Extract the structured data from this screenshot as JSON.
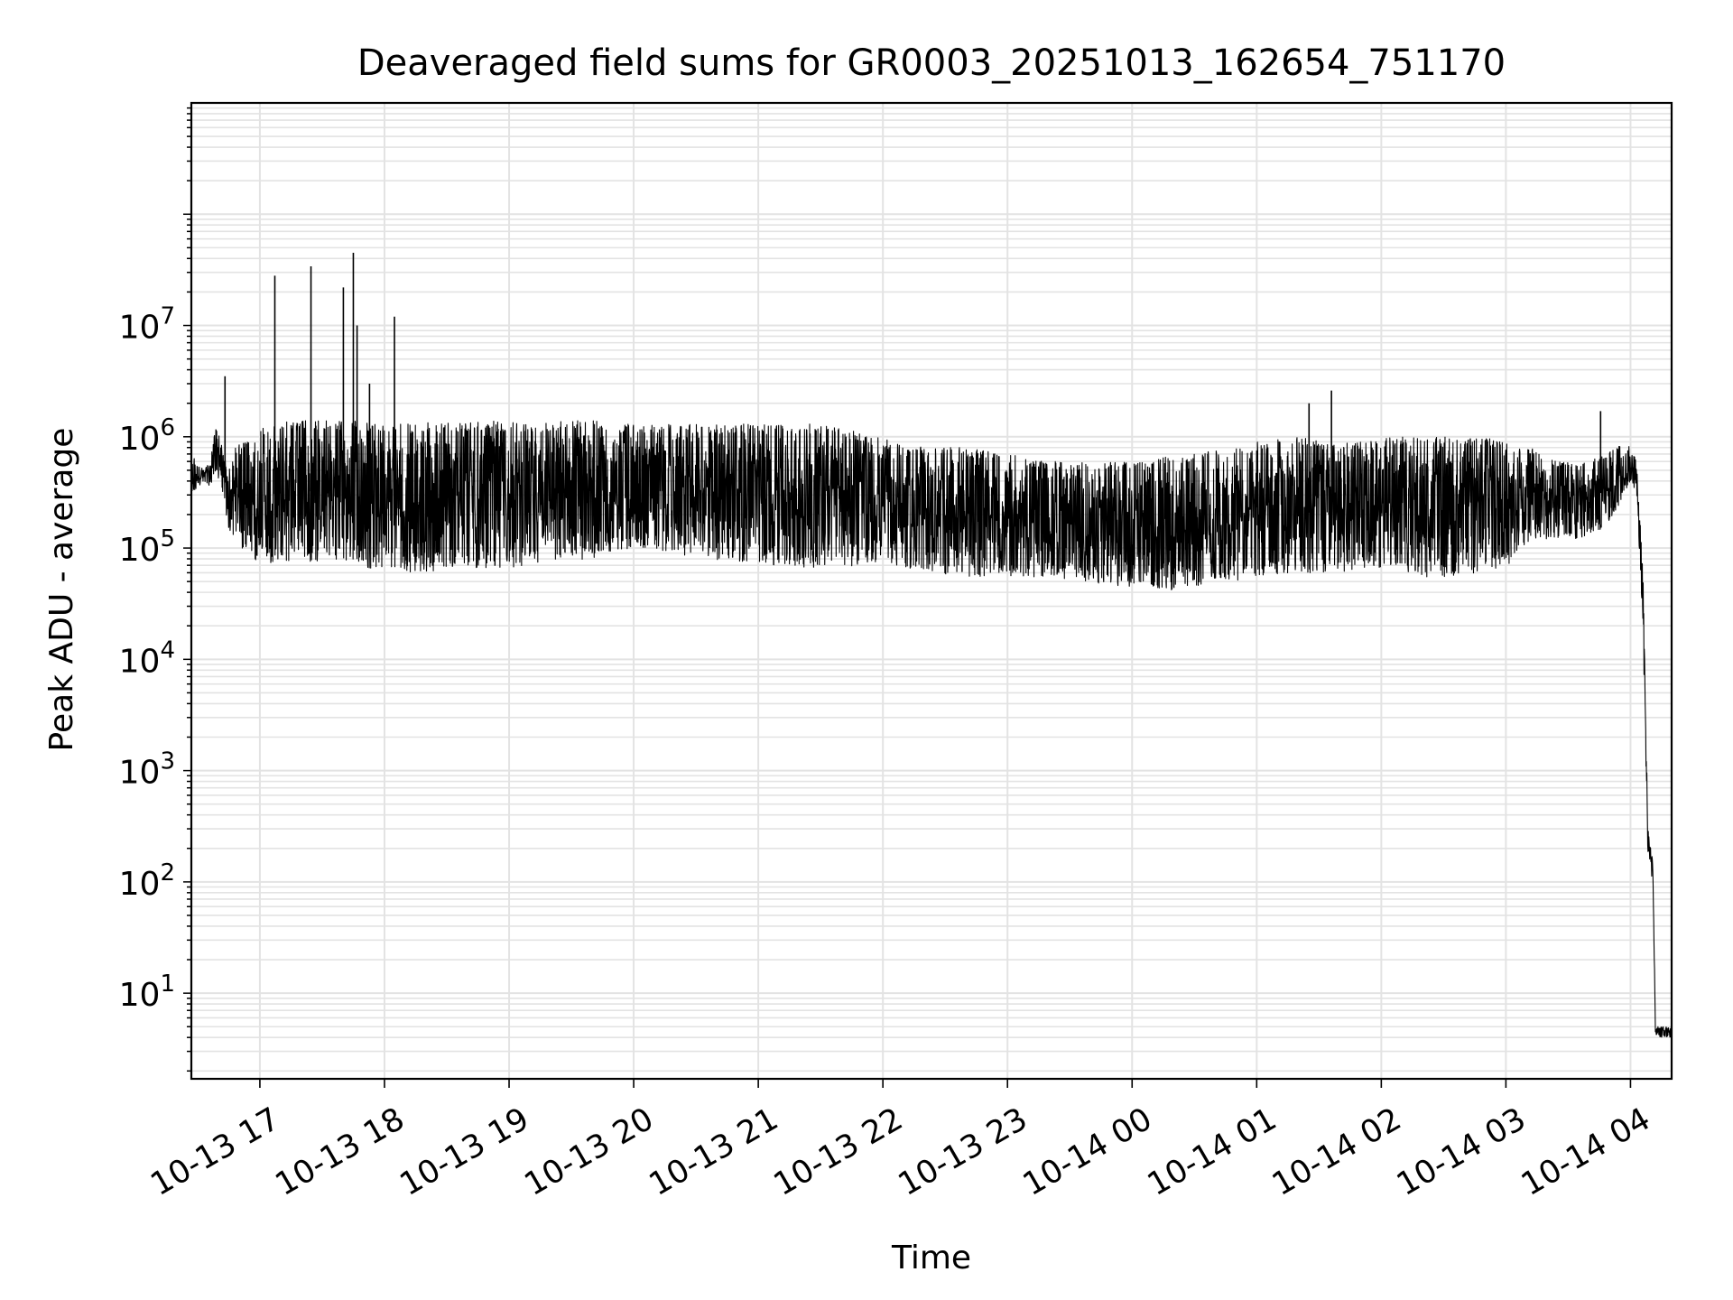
{
  "chart_data": {
    "type": "line",
    "title": "Deaveraged field sums for GR0003_20251013_162654_751170",
    "xlabel": "Time",
    "ylabel": "Peak ADU - average",
    "yscale": "log",
    "ylim": [
      1.7,
      1000000000
    ],
    "xlim_hours": [
      16.45,
      28.33
    ],
    "grid": true,
    "line_color": "#000000",
    "grid_color": "#e3e3e3",
    "xticks": [
      {
        "hour": 17,
        "label": "10-13 17"
      },
      {
        "hour": 18,
        "label": "10-13 18"
      },
      {
        "hour": 19,
        "label": "10-13 19"
      },
      {
        "hour": 20,
        "label": "10-13 20"
      },
      {
        "hour": 21,
        "label": "10-13 21"
      },
      {
        "hour": 22,
        "label": "10-13 22"
      },
      {
        "hour": 23,
        "label": "10-13 23"
      },
      {
        "hour": 24,
        "label": "10-14 00"
      },
      {
        "hour": 25,
        "label": "10-14 01"
      },
      {
        "hour": 26,
        "label": "10-14 02"
      },
      {
        "hour": 27,
        "label": "10-14 03"
      },
      {
        "hour": 28,
        "label": "10-14 04"
      }
    ],
    "yticks": [
      {
        "exp": 1,
        "label": "1"
      },
      {
        "exp": 2,
        "label": "2"
      },
      {
        "exp": 3,
        "label": "3"
      },
      {
        "exp": 4,
        "label": "4"
      },
      {
        "exp": 5,
        "label": "5"
      },
      {
        "exp": 6,
        "label": "6"
      },
      {
        "exp": 7,
        "label": "7"
      }
    ],
    "ytick_base": "10",
    "series": [
      {
        "name": "deaveraged field sum",
        "x_hours": [
          16.45,
          16.5,
          16.55,
          16.6,
          16.65,
          16.7,
          16.75,
          16.8,
          16.85,
          16.9,
          16.95,
          17.0,
          17.1,
          17.2,
          17.3,
          17.4,
          17.5,
          17.6,
          17.7,
          17.8,
          17.9,
          18.0,
          18.2,
          18.4,
          18.6,
          18.8,
          19.0,
          19.2,
          19.4,
          19.6,
          19.8,
          20.0,
          20.3,
          20.6,
          20.9,
          21.2,
          21.5,
          21.8,
          22.1,
          22.4,
          22.7,
          23.0,
          23.3,
          23.6,
          23.9,
          24.1,
          24.3,
          24.5,
          24.8,
          25.0,
          25.3,
          25.6,
          25.9,
          26.1,
          26.3,
          26.5,
          26.8,
          27.0,
          27.2,
          27.4,
          27.6,
          27.8,
          27.95,
          28.0,
          28.05,
          28.1,
          28.14,
          28.18,
          28.2,
          28.22,
          28.24,
          28.26,
          28.3,
          28.33
        ],
        "upper": [
          700000,
          600000,
          500000,
          600000,
          1300000,
          800000,
          500000,
          800000,
          900000,
          900000,
          1000000,
          1200000,
          1300000,
          1400000,
          1400000,
          1400000,
          1400000,
          1400000,
          1400000,
          1400000,
          1300000,
          1300000,
          1300000,
          1350000,
          1350000,
          1400000,
          1350000,
          1300000,
          1400000,
          1500000,
          1300000,
          1300000,
          1300000,
          1300000,
          1300000,
          1300000,
          1300000,
          1100000,
          900000,
          800000,
          800000,
          700000,
          600000,
          600000,
          600000,
          600000,
          700000,
          700000,
          800000,
          900000,
          1000000,
          900000,
          900000,
          1000000,
          1000000,
          1000000,
          1000000,
          900000,
          800000,
          600000,
          600000,
          700000,
          900000,
          800000,
          600000,
          60000,
          300,
          150,
          5,
          5,
          5,
          5,
          5,
          5
        ],
        "lower": [
          300000,
          350000,
          400000,
          350000,
          500000,
          300000,
          150000,
          120000,
          100000,
          90000,
          80000,
          75000,
          70000,
          75000,
          80000,
          75000,
          75000,
          80000,
          75000,
          70000,
          65000,
          65000,
          60000,
          60000,
          65000,
          65000,
          65000,
          70000,
          70000,
          75000,
          90000,
          100000,
          90000,
          80000,
          70000,
          70000,
          65000,
          70000,
          70000,
          60000,
          55000,
          55000,
          55000,
          50000,
          45000,
          45000,
          40000,
          45000,
          50000,
          55000,
          60000,
          60000,
          65000,
          70000,
          55000,
          55000,
          60000,
          65000,
          120000,
          120000,
          120000,
          150000,
          300000,
          400000,
          300000,
          20000,
          150,
          100,
          4,
          4,
          4,
          4,
          4,
          4
        ],
        "spikes": [
          {
            "hour": 16.72,
            "value": 3500000
          },
          {
            "hour": 17.12,
            "value": 28000000
          },
          {
            "hour": 17.41,
            "value": 34000000
          },
          {
            "hour": 17.67,
            "value": 22000000
          },
          {
            "hour": 17.75,
            "value": 45000000
          },
          {
            "hour": 17.78,
            "value": 10000000
          },
          {
            "hour": 17.88,
            "value": 3000000
          },
          {
            "hour": 18.08,
            "value": 12000000
          },
          {
            "hour": 25.42,
            "value": 2000000
          },
          {
            "hour": 25.6,
            "value": 2600000
          },
          {
            "hour": 27.76,
            "value": 1700000
          }
        ]
      }
    ]
  }
}
